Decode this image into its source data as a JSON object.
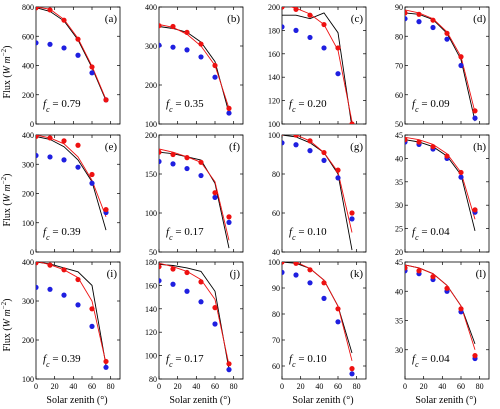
{
  "figure": {
    "ylabel_main": "Flux (",
    "ylabel_unit": "W m",
    "ylabel_exp": "−2",
    "ylabel_close": ")",
    "xlabel_main": "Solar zenith (",
    "xlabel_unit": "°",
    "xlabel_close": ")"
  },
  "chart_data": [
    {
      "type": "scatter",
      "label": "(a)",
      "fc": "f_c = 0.79",
      "xlim": [
        0,
        90
      ],
      "ylim": [
        0,
        800
      ],
      "xticks": [
        0,
        20,
        40,
        60,
        80
      ],
      "yticks": [
        0,
        200,
        400,
        600,
        800
      ],
      "xticklabels": false,
      "yticklabels": true,
      "red_points": {
        "x": [
          0,
          15,
          30,
          45,
          60,
          75
        ],
        "y": [
          795,
          780,
          710,
          580,
          390,
          165
        ]
      },
      "blue_points": {
        "x": [
          0,
          15,
          30,
          45,
          60,
          75
        ],
        "y": [
          555,
          545,
          520,
          470,
          350,
          165
        ]
      },
      "black_line": {
        "x": [
          0,
          15,
          30,
          45,
          60,
          75
        ],
        "y": [
          795,
          770,
          705,
          575,
          385,
          160
        ]
      },
      "red_line": {
        "x": [
          0,
          15,
          30,
          45,
          60,
          75
        ],
        "y": [
          800,
          785,
          715,
          585,
          395,
          168
        ]
      }
    },
    {
      "type": "scatter",
      "label": "(b)",
      "fc": "f_c = 0.35",
      "xlim": [
        0,
        90
      ],
      "ylim": [
        100,
        400
      ],
      "xticks": [
        0,
        20,
        40,
        60,
        80
      ],
      "yticks": [
        100,
        200,
        300,
        400
      ],
      "xticklabels": false,
      "yticklabels": true,
      "red_points": {
        "x": [
          0,
          15,
          30,
          45,
          60,
          75
        ],
        "y": [
          352,
          350,
          335,
          305,
          250,
          140
        ]
      },
      "blue_points": {
        "x": [
          0,
          15,
          30,
          45,
          60,
          75
        ],
        "y": [
          302,
          297,
          290,
          272,
          220,
          128
        ]
      },
      "black_line": {
        "x": [
          0,
          15,
          30,
          45,
          60,
          75
        ],
        "y": [
          350,
          345,
          335,
          310,
          260,
          128
        ]
      },
      "red_line": {
        "x": [
          0,
          15,
          30,
          45,
          60,
          75
        ],
        "y": [
          355,
          348,
          330,
          300,
          250,
          140
        ]
      }
    },
    {
      "type": "scatter",
      "label": "(c)",
      "fc": "f_c = 0.20",
      "xlim": [
        0,
        90
      ],
      "ylim": [
        100,
        200
      ],
      "xticks": [
        0,
        20,
        40,
        60,
        80
      ],
      "yticks": [
        100,
        120,
        140,
        160,
        180,
        200
      ],
      "xticklabels": false,
      "yticklabels": true,
      "red_points": {
        "x": [
          0,
          15,
          30,
          45,
          60,
          75
        ],
        "y": [
          200,
          198,
          193,
          185,
          165,
          100
        ]
      },
      "blue_points": {
        "x": [
          0,
          15,
          30,
          45,
          60,
          75
        ],
        "y": [
          183,
          180,
          174,
          165,
          143,
          96
        ]
      },
      "black_line": {
        "x": [
          0,
          15,
          30,
          45,
          60,
          75
        ],
        "y": [
          193,
          193,
          190,
          195,
          178,
          97
        ]
      },
      "red_line": {
        "x": [
          0,
          15,
          30,
          45,
          60,
          75
        ],
        "y": [
          202,
          199,
          194,
          185,
          163,
          102
        ]
      }
    },
    {
      "type": "scatter",
      "label": "(d)",
      "fc": "f_c = 0.09",
      "xlim": [
        0,
        90
      ],
      "ylim": [
        50,
        90
      ],
      "xticks": [
        0,
        20,
        40,
        60,
        80
      ],
      "yticks": [
        50,
        60,
        70,
        80,
        90
      ],
      "xticklabels": false,
      "yticklabels": true,
      "red_points": {
        "x": [
          0,
          15,
          30,
          45,
          60,
          75
        ],
        "y": [
          88,
          87.5,
          85.5,
          81,
          73,
          54.5
        ]
      },
      "blue_points": {
        "x": [
          0,
          15,
          30,
          45,
          60,
          75
        ],
        "y": [
          86,
          85,
          83,
          79,
          70,
          52
        ]
      },
      "black_line": {
        "x": [
          0,
          15,
          30,
          45,
          60,
          75
        ],
        "y": [
          88,
          87.5,
          85.7,
          81,
          72,
          51
        ]
      },
      "red_line": {
        "x": [
          0,
          15,
          30,
          45,
          60,
          75
        ],
        "y": [
          89,
          88,
          86,
          81.5,
          73,
          54
        ]
      }
    },
    {
      "type": "scatter",
      "label": "(e)",
      "fc": "f_c = 0.39",
      "xlim": [
        0,
        90
      ],
      "ylim": [
        0,
        400
      ],
      "xticks": [
        0,
        20,
        40,
        60,
        80
      ],
      "yticks": [
        0,
        100,
        200,
        300,
        400
      ],
      "xticklabels": false,
      "yticklabels": true,
      "red_points": {
        "x": [
          0,
          15,
          30,
          45,
          60,
          75
        ],
        "y": [
          395,
          390,
          380,
          365,
          265,
          145
        ]
      },
      "blue_points": {
        "x": [
          0,
          15,
          30,
          45,
          60,
          75
        ],
        "y": [
          330,
          325,
          315,
          290,
          235,
          135
        ]
      },
      "black_line": {
        "x": [
          0,
          15,
          30,
          45,
          60,
          75
        ],
        "y": [
          395,
          385,
          360,
          315,
          240,
          75
        ]
      },
      "red_line": {
        "x": [
          0,
          15,
          30,
          45,
          60,
          75
        ],
        "y": [
          400,
          390,
          370,
          325,
          245,
          120
        ]
      }
    },
    {
      "type": "scatter",
      "label": "(f)",
      "fc": "f_c = 0.17",
      "xlim": [
        0,
        90
      ],
      "ylim": [
        50,
        200
      ],
      "xticks": [
        0,
        20,
        40,
        60,
        80
      ],
      "yticks": [
        50,
        100,
        150,
        200
      ],
      "xticklabels": false,
      "yticklabels": true,
      "red_points": {
        "x": [
          0,
          15,
          30,
          45,
          60,
          75
        ],
        "y": [
          178,
          175,
          171,
          165,
          126,
          95
        ]
      },
      "blue_points": {
        "x": [
          0,
          15,
          30,
          45,
          60,
          75
        ],
        "y": [
          166,
          163,
          157,
          148,
          120,
          88
        ]
      },
      "black_line": {
        "x": [
          0,
          15,
          30,
          45,
          60,
          75
        ],
        "y": [
          178,
          176,
          172,
          168,
          138,
          55
        ]
      },
      "red_line": {
        "x": [
          0,
          15,
          30,
          45,
          60,
          75
        ],
        "y": [
          182,
          178,
          172,
          165,
          140,
          65
        ]
      }
    },
    {
      "type": "scatter",
      "label": "(g)",
      "fc": "f_c = 0.10",
      "xlim": [
        0,
        90
      ],
      "ylim": [
        40,
        100
      ],
      "xticks": [
        0,
        20,
        40,
        60,
        80
      ],
      "yticks": [
        40,
        60,
        80,
        100
      ],
      "xticklabels": false,
      "yticklabels": true,
      "red_points": {
        "x": [
          0,
          15,
          30,
          45,
          60,
          75
        ],
        "y": [
          101,
          100,
          97,
          91,
          82,
          60
        ]
      },
      "blue_points": {
        "x": [
          0,
          15,
          30,
          45,
          60,
          75
        ],
        "y": [
          96,
          95,
          92,
          87,
          78,
          57
        ]
      },
      "black_line": {
        "x": [
          0,
          15,
          30,
          45,
          60,
          75
        ],
        "y": [
          100,
          99,
          96,
          91,
          80,
          41
        ]
      },
      "red_line": {
        "x": [
          0,
          15,
          30,
          45,
          60,
          75
        ],
        "y": [
          102,
          100,
          97,
          91,
          81,
          50
        ]
      }
    },
    {
      "type": "scatter",
      "label": "(h)",
      "fc": "f_c = 0.04",
      "xlim": [
        0,
        90
      ],
      "ylim": [
        20,
        45
      ],
      "xticks": [
        0,
        20,
        40,
        60,
        80
      ],
      "yticks": [
        20,
        25,
        30,
        35,
        40,
        45
      ],
      "xticklabels": false,
      "yticklabels": true,
      "red_points": {
        "x": [
          0,
          15,
          30,
          45,
          60,
          75
        ],
        "y": [
          44,
          43.5,
          42.5,
          40.5,
          37,
          29
        ]
      },
      "blue_points": {
        "x": [
          0,
          15,
          30,
          45,
          60,
          75
        ],
        "y": [
          43.5,
          43,
          42,
          40,
          36,
          28.5
        ]
      },
      "black_line": {
        "x": [
          0,
          15,
          30,
          45,
          60,
          75
        ],
        "y": [
          44,
          43.5,
          42.5,
          40.5,
          36.5,
          24.5
        ]
      },
      "red_line": {
        "x": [
          0,
          15,
          30,
          45,
          60,
          75
        ],
        "y": [
          44.5,
          44,
          43,
          41,
          37,
          27
        ]
      }
    },
    {
      "type": "scatter",
      "label": "(i)",
      "fc": "f_c = 0.39",
      "xlim": [
        0,
        90
      ],
      "ylim": [
        100,
        400
      ],
      "xticks": [
        0,
        20,
        40,
        60,
        80
      ],
      "yticks": [
        100,
        200,
        300,
        400
      ],
      "xticklabels": true,
      "yticklabels": true,
      "red_points": {
        "x": [
          0,
          15,
          30,
          45,
          60,
          75
        ],
        "y": [
          398,
          392,
          380,
          355,
          280,
          145
        ]
      },
      "blue_points": {
        "x": [
          0,
          15,
          30,
          45,
          60,
          75
        ],
        "y": [
          335,
          330,
          315,
          290,
          235,
          130
        ]
      },
      "black_line": {
        "x": [
          0,
          15,
          30,
          45,
          60,
          75
        ],
        "y": [
          400,
          395,
          385,
          375,
          340,
          135
        ]
      },
      "red_line": {
        "x": [
          0,
          15,
          30,
          45,
          60,
          75
        ],
        "y": [
          402,
          393,
          380,
          360,
          300,
          140
        ]
      }
    },
    {
      "type": "scatter",
      "label": "(j)",
      "fc": "f_c = 0.17",
      "xlim": [
        0,
        90
      ],
      "ylim": [
        80,
        180
      ],
      "xticks": [
        0,
        20,
        40,
        60,
        80
      ],
      "yticks": [
        80,
        100,
        120,
        140,
        160,
        180
      ],
      "xticklabels": true,
      "yticklabels": true,
      "red_points": {
        "x": [
          0,
          15,
          30,
          45,
          60,
          75
        ],
        "y": [
          176,
          174,
          171,
          163,
          141,
          93
        ]
      },
      "blue_points": {
        "x": [
          0,
          15,
          30,
          45,
          60,
          75
        ],
        "y": [
          164,
          161,
          155,
          146,
          127,
          88
        ]
      },
      "black_line": {
        "x": [
          0,
          15,
          30,
          45,
          60,
          75
        ],
        "y": [
          178,
          177,
          175,
          172,
          155,
          88
        ]
      },
      "red_line": {
        "x": [
          0,
          15,
          30,
          45,
          60,
          75
        ],
        "y": [
          179,
          176,
          172,
          165,
          148,
          92
        ]
      }
    },
    {
      "type": "scatter",
      "label": "(k)",
      "fc": "f_c = 0.10",
      "xlim": [
        0,
        90
      ],
      "ylim": [
        55,
        100
      ],
      "xticks": [
        0,
        20,
        40,
        60,
        80
      ],
      "yticks": [
        60,
        70,
        80,
        90,
        100
      ],
      "xticklabels": true,
      "yticklabels": true,
      "red_points": {
        "x": [
          0,
          15,
          30,
          45,
          60,
          75
        ],
        "y": [
          100,
          99.5,
          97,
          92,
          82,
          59
        ]
      },
      "blue_points": {
        "x": [
          0,
          15,
          30,
          45,
          60,
          75
        ],
        "y": [
          96,
          95,
          92,
          86,
          77,
          57
        ]
      },
      "black_line": {
        "x": [
          0,
          15,
          30,
          45,
          60,
          75
        ],
        "y": [
          100,
          99.5,
          97.5,
          93,
          83,
          65
        ]
      },
      "red_line": {
        "x": [
          0,
          15,
          30,
          45,
          60,
          75
        ],
        "y": [
          101,
          100,
          97.5,
          93,
          83,
          62
        ]
      }
    },
    {
      "type": "scatter",
      "label": "(l)",
      "fc": "f_c = 0.04",
      "xlim": [
        0,
        90
      ],
      "ylim": [
        25,
        45
      ],
      "xticks": [
        0,
        20,
        40,
        60,
        80
      ],
      "yticks": [
        30,
        35,
        40,
        45
      ],
      "xticklabels": true,
      "yticklabels": true,
      "red_points": {
        "x": [
          0,
          15,
          30,
          45,
          60,
          75
        ],
        "y": [
          44,
          43.5,
          42.5,
          40.5,
          37,
          29
        ]
      },
      "blue_points": {
        "x": [
          0,
          15,
          30,
          45,
          60,
          75
        ],
        "y": [
          43.5,
          43,
          42,
          40,
          36.5,
          28.5
        ]
      },
      "black_line": {
        "x": [
          0,
          15,
          30,
          45,
          60,
          75
        ],
        "y": [
          44.5,
          44,
          43,
          41,
          37.5,
          31
        ]
      },
      "red_line": {
        "x": [
          0,
          15,
          30,
          45,
          60,
          75
        ],
        "y": [
          44.5,
          44,
          43,
          41,
          37.5,
          30
        ]
      }
    }
  ],
  "colors": {
    "red": "#ee1111",
    "blue": "#1f1fe0",
    "black": "#000000"
  }
}
